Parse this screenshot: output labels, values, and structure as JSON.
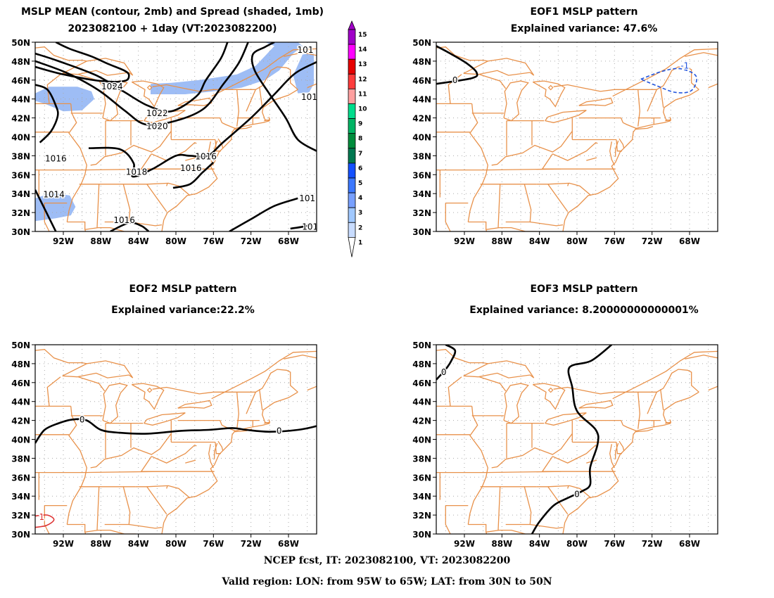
{
  "panels": [
    {
      "id": "mean-spread",
      "title_line1": "MSLP MEAN (contour, 2mb) and Spread (shaded, 1mb)",
      "title_line2": "2023082100 + 1day (VT:2023082200)",
      "contour_labels": [
        "1024",
        "1022",
        "1020",
        "1016",
        "1016",
        "1016",
        "1018",
        "1014",
        "1016",
        "1014",
        "101",
        "101",
        "101"
      ]
    },
    {
      "id": "eof1",
      "title_line1": "EOF1 MSLP pattern",
      "title_line2": "Explained variance: 47.6%",
      "contour_labels": [
        "0",
        "-1"
      ]
    },
    {
      "id": "eof2",
      "title_line1": "EOF2 MSLP pattern",
      "title_line2": "Explained variance:22.2%",
      "contour_labels": [
        "0",
        "0",
        "1"
      ]
    },
    {
      "id": "eof3",
      "title_line1": "EOF3 MSLP pattern",
      "title_line2": "Explained variance: 8.20000000000001%",
      "contour_labels": [
        "0",
        "0"
      ]
    }
  ],
  "axes": {
    "lat_labels": [
      "50N",
      "48N",
      "46N",
      "44N",
      "42N",
      "40N",
      "38N",
      "36N",
      "34N",
      "32N",
      "30N"
    ],
    "lon_labels": [
      "92W",
      "88W",
      "84W",
      "80W",
      "76W",
      "72W",
      "68W"
    ]
  },
  "colorbar": {
    "labels": [
      "15",
      "14",
      "13",
      "12",
      "11",
      "10",
      "9",
      "8",
      "7",
      "6",
      "5",
      "4",
      "3",
      "2",
      "1"
    ],
    "colors": [
      "#a000c8",
      "#ff00ff",
      "#e60000",
      "#ff3c3c",
      "#ffa0a0",
      "#00dc8c",
      "#00b464",
      "#008c3c",
      "#007850",
      "#1450ff",
      "#3c78ff",
      "#78a0ff",
      "#a0c8ff",
      "#c8dcff",
      "#ffffff"
    ]
  },
  "colors": {
    "state_lines": "#e8914a",
    "contour": "#000000",
    "spread_fill": "#9ebdf5",
    "negative_contour": "#2255dd",
    "positive_contour": "#dd3333"
  },
  "footer": {
    "line1": "NCEP fcst, IT: 2023082100, VT: 2023082200",
    "line2": "Valid region: LON: from 95W to 65W; LAT: from 30N to 50N"
  }
}
